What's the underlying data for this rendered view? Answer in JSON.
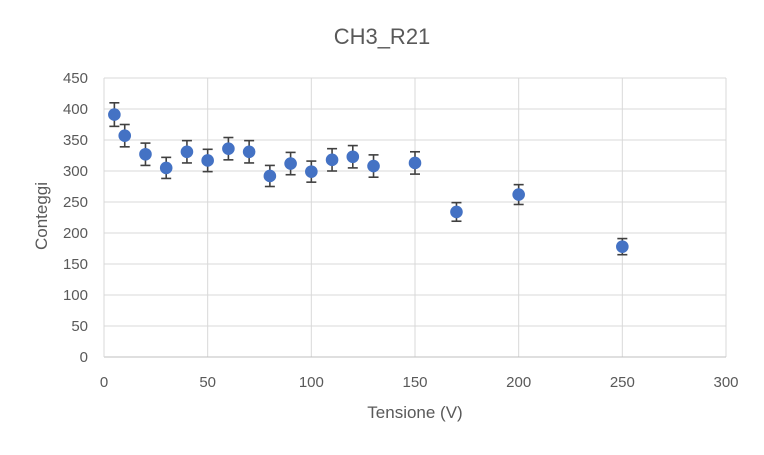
{
  "chart_data": {
    "type": "scatter",
    "title": "CH3_R21",
    "xlabel": "Tensione (V)",
    "ylabel": "Conteggi",
    "xlim": [
      0,
      300
    ],
    "ylim": [
      0,
      450
    ],
    "xticks": [
      0,
      50,
      100,
      150,
      200,
      250,
      300
    ],
    "yticks": [
      0,
      50,
      100,
      150,
      200,
      250,
      300,
      350,
      400,
      450
    ],
    "grid": true,
    "legend": "none",
    "marker_color": "#4472C4",
    "errorbar_color": "#404040",
    "points": [
      {
        "x": 5,
        "y": 391,
        "err": 19
      },
      {
        "x": 10,
        "y": 357,
        "err": 18
      },
      {
        "x": 20,
        "y": 327,
        "err": 18
      },
      {
        "x": 30,
        "y": 305,
        "err": 17
      },
      {
        "x": 40,
        "y": 331,
        "err": 18
      },
      {
        "x": 50,
        "y": 317,
        "err": 18
      },
      {
        "x": 60,
        "y": 336,
        "err": 18
      },
      {
        "x": 70,
        "y": 331,
        "err": 18
      },
      {
        "x": 80,
        "y": 292,
        "err": 17
      },
      {
        "x": 90,
        "y": 312,
        "err": 18
      },
      {
        "x": 100,
        "y": 299,
        "err": 17
      },
      {
        "x": 110,
        "y": 318,
        "err": 18
      },
      {
        "x": 120,
        "y": 323,
        "err": 18
      },
      {
        "x": 130,
        "y": 308,
        "err": 18
      },
      {
        "x": 150,
        "y": 313,
        "err": 18
      },
      {
        "x": 170,
        "y": 234,
        "err": 15
      },
      {
        "x": 200,
        "y": 262,
        "err": 16
      },
      {
        "x": 250,
        "y": 178,
        "err": 13
      }
    ]
  }
}
